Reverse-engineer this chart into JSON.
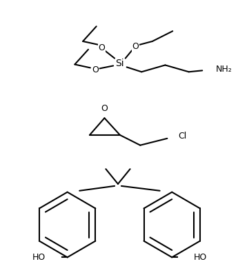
{
  "background_color": "#ffffff",
  "line_color": "#000000",
  "line_width": 1.5,
  "font_size": 9,
  "fig_width": 3.45,
  "fig_height": 3.86,
  "dpi": 100,
  "silane": {
    "Si_label": "Si",
    "NH2_label": "NH₂",
    "O_label": "O",
    "Cl_label": "Cl",
    "HO_label": "HO"
  }
}
